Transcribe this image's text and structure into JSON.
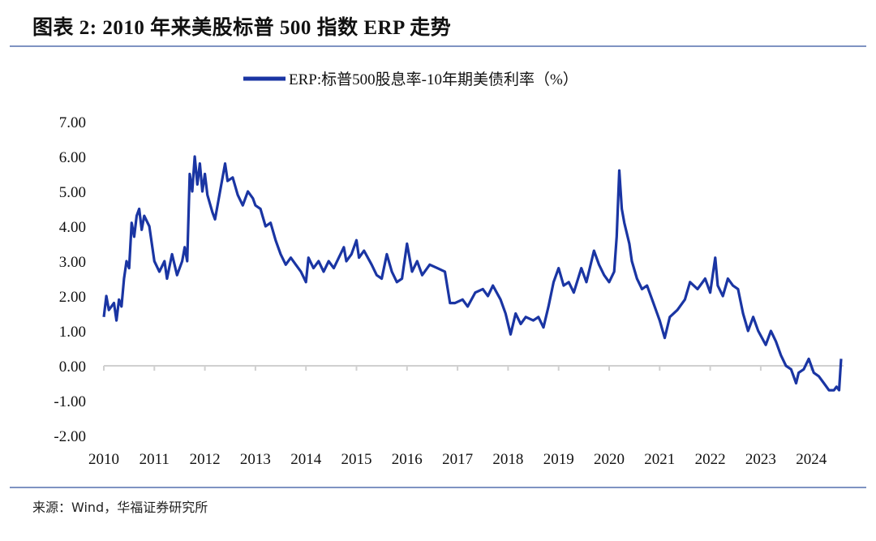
{
  "header": {
    "title": "图表 2:  2010 年来美股标普 500 指数 ERP 走势"
  },
  "footer": {
    "source": "来源：Wind，华福证券研究所"
  },
  "colors": {
    "line": "#1a35a3",
    "rule": "#7f93c2",
    "axis": "#d0d0d0"
  },
  "chart_data": {
    "type": "line",
    "title": "图表 2:  2010 年来美股标普 500 指数 ERP 走势",
    "xlabel": "",
    "ylabel": "",
    "ylim": [
      -2,
      7
    ],
    "xlim": [
      2010,
      2024.6
    ],
    "yticks": [
      "-2.00",
      "-1.00",
      "0.00",
      "1.00",
      "2.00",
      "3.00",
      "4.00",
      "5.00",
      "6.00",
      "7.00"
    ],
    "xticks": [
      "2010",
      "2011",
      "2012",
      "2013",
      "2014",
      "2015",
      "2016",
      "2017",
      "2018",
      "2019",
      "2020",
      "2021",
      "2022",
      "2023",
      "2024"
    ],
    "grid": false,
    "legend": {
      "position": "top-center",
      "entries": [
        "ERP:标普500股息率-10年期美债利率（%）"
      ]
    },
    "series": [
      {
        "name": "ERP:标普500股息率-10年期美债利率（%）",
        "x": [
          2010.0,
          2010.05,
          2010.1,
          2010.2,
          2010.25,
          2010.3,
          2010.35,
          2010.4,
          2010.45,
          2010.5,
          2010.55,
          2010.6,
          2010.65,
          2010.7,
          2010.75,
          2010.8,
          2010.9,
          2011.0,
          2011.1,
          2011.2,
          2011.25,
          2011.35,
          2011.45,
          2011.55,
          2011.6,
          2011.65,
          2011.7,
          2011.75,
          2011.8,
          2011.85,
          2011.9,
          2011.95,
          2012.0,
          2012.05,
          2012.15,
          2012.2,
          2012.3,
          2012.4,
          2012.45,
          2012.55,
          2012.65,
          2012.75,
          2012.85,
          2012.95,
          2013.0,
          2013.1,
          2013.2,
          2013.3,
          2013.4,
          2013.5,
          2013.6,
          2013.7,
          2013.8,
          2013.9,
          2014.0,
          2014.05,
          2014.15,
          2014.25,
          2014.35,
          2014.45,
          2014.55,
          2014.65,
          2014.75,
          2014.8,
          2014.9,
          2015.0,
          2015.05,
          2015.15,
          2015.3,
          2015.4,
          2015.5,
          2015.6,
          2015.7,
          2015.8,
          2015.9,
          2016.0,
          2016.1,
          2016.2,
          2016.3,
          2016.45,
          2016.6,
          2016.75,
          2016.85,
          2016.95,
          2017.1,
          2017.2,
          2017.35,
          2017.5,
          2017.6,
          2017.7,
          2017.85,
          2017.95,
          2018.05,
          2018.15,
          2018.25,
          2018.35,
          2018.5,
          2018.6,
          2018.7,
          2018.8,
          2018.9,
          2019.0,
          2019.1,
          2019.2,
          2019.3,
          2019.45,
          2019.55,
          2019.7,
          2019.8,
          2019.9,
          2020.0,
          2020.1,
          2020.15,
          2020.2,
          2020.25,
          2020.3,
          2020.4,
          2020.45,
          2020.55,
          2020.65,
          2020.75,
          2020.85,
          2020.95,
          2021.0,
          2021.1,
          2021.2,
          2021.35,
          2021.5,
          2021.6,
          2021.75,
          2021.9,
          2022.0,
          2022.1,
          2022.15,
          2022.25,
          2022.35,
          2022.45,
          2022.55,
          2022.65,
          2022.75,
          2022.85,
          2022.95,
          2023.1,
          2023.2,
          2023.3,
          2023.4,
          2023.5,
          2023.6,
          2023.7,
          2023.75,
          2023.85,
          2023.95,
          2024.05,
          2024.15,
          2024.25,
          2024.35,
          2024.45,
          2024.5,
          2024.55,
          2024.59
        ],
        "values": [
          1.4,
          2.0,
          1.6,
          1.8,
          1.3,
          1.9,
          1.7,
          2.5,
          3.0,
          2.8,
          4.1,
          3.7,
          4.3,
          4.5,
          3.9,
          4.3,
          4.0,
          3.0,
          2.7,
          3.0,
          2.5,
          3.2,
          2.6,
          3.0,
          3.4,
          3.0,
          5.5,
          5.0,
          6.0,
          5.2,
          5.8,
          5.0,
          5.5,
          4.9,
          4.4,
          4.2,
          5.0,
          5.8,
          5.3,
          5.4,
          4.9,
          4.6,
          5.0,
          4.8,
          4.6,
          4.5,
          4.0,
          4.1,
          3.6,
          3.2,
          2.9,
          3.1,
          2.9,
          2.7,
          2.4,
          3.1,
          2.8,
          3.0,
          2.7,
          3.0,
          2.8,
          3.1,
          3.4,
          3.0,
          3.2,
          3.6,
          3.1,
          3.3,
          2.9,
          2.6,
          2.5,
          3.2,
          2.7,
          2.4,
          2.5,
          3.5,
          2.7,
          3.0,
          2.6,
          2.9,
          2.8,
          2.7,
          1.8,
          1.8,
          1.9,
          1.7,
          2.1,
          2.2,
          2.0,
          2.3,
          1.9,
          1.5,
          0.9,
          1.5,
          1.2,
          1.4,
          1.3,
          1.4,
          1.1,
          1.7,
          2.4,
          2.8,
          2.3,
          2.4,
          2.1,
          2.8,
          2.4,
          3.3,
          2.9,
          2.6,
          2.4,
          2.7,
          3.7,
          5.6,
          4.5,
          4.1,
          3.5,
          3.0,
          2.5,
          2.2,
          2.3,
          1.9,
          1.5,
          1.3,
          0.8,
          1.4,
          1.6,
          1.9,
          2.4,
          2.2,
          2.5,
          2.1,
          3.1,
          2.3,
          2.0,
          2.5,
          2.3,
          2.2,
          1.5,
          1.0,
          1.4,
          1.0,
          0.6,
          1.0,
          0.7,
          0.3,
          0.0,
          -0.1,
          -0.5,
          -0.2,
          -0.1,
          0.2,
          -0.2,
          -0.3,
          -0.5,
          -0.7,
          -0.7,
          -0.6,
          -0.7,
          0.2
        ]
      }
    ]
  }
}
